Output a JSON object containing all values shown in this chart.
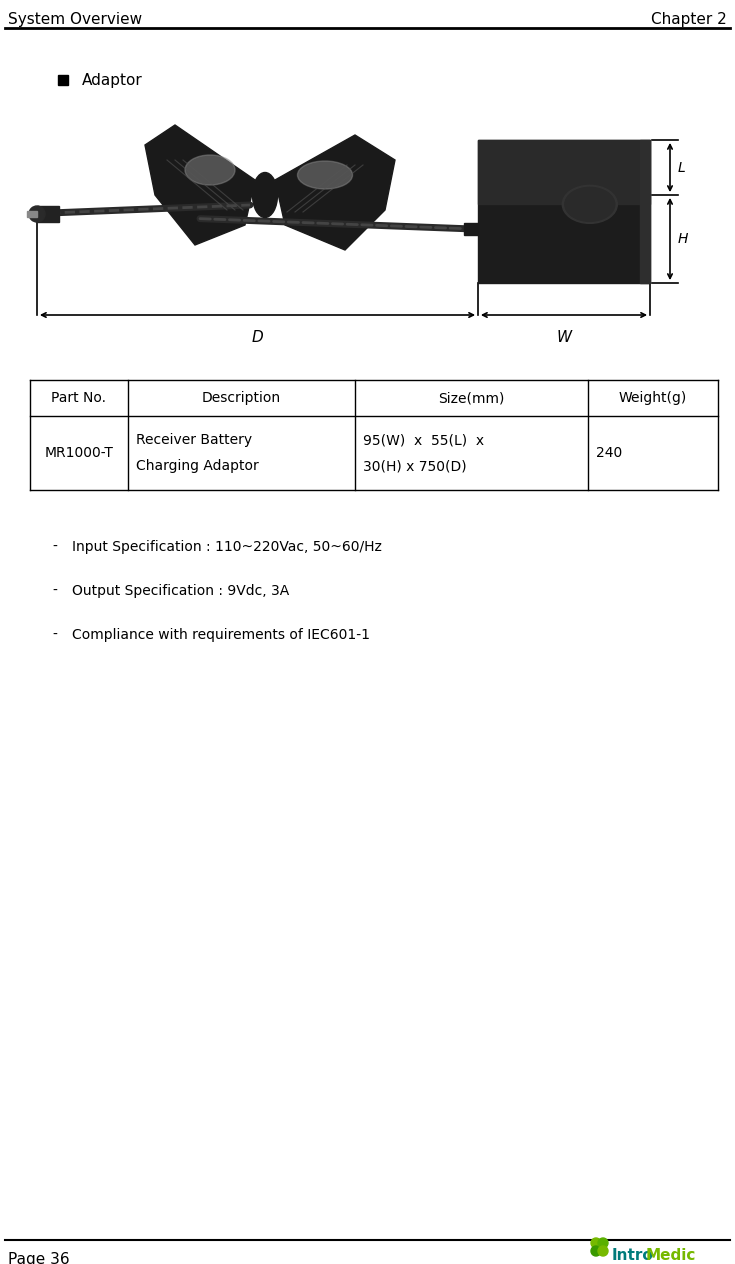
{
  "header_left": "System Overview",
  "header_right": "Chapter 2",
  "footer_left": "Page 36",
  "bullet_text": "Adaptor",
  "table_headers": [
    "Part No.",
    "Description",
    "Size(mm)",
    "Weight(g)"
  ],
  "table_row_col0": "MR1000-T",
  "table_row_col1a": "Receiver Battery",
  "table_row_col1b": "Charging Adaptor",
  "table_row_col2a": "95(W)  x  55(L)  x",
  "table_row_col2b": "30(H) x 750(D)",
  "table_row_col3": "240",
  "bullet_items": [
    "Input Specification : 110~220Vac, 50~60/Hz",
    "Output Specification : 9Vdc, 3A",
    "Compliance with requirements of IEC601-1"
  ],
  "bg_color": "#ffffff",
  "text_color": "#000000",
  "header_font_size": 11,
  "body_font_size": 10,
  "table_font_size": 10,
  "intro_medic_green": "#76b900",
  "intro_medic_teal": "#007b7b",
  "dim_line_color": "#000000",
  "adaptor_box_color": "#1a1a1a",
  "adaptor_box_highlight": "#2d2d2d",
  "cable_color": "#222222",
  "cable_light": "#888888"
}
